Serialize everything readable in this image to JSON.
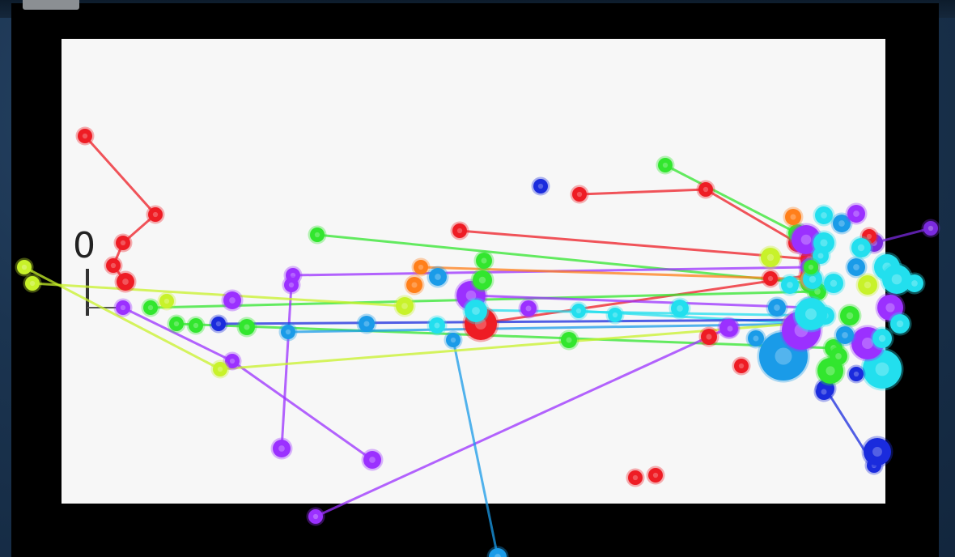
{
  "chart_data": {
    "type": "scatter",
    "title": "",
    "xlabel": "",
    "ylabel": "",
    "annotation": "0",
    "point_style": "connected bubble trails",
    "colors": [
      "#ee1c24",
      "#32e62e",
      "#9b30ff",
      "#22dfee",
      "#1a2bdd",
      "#1a9be8",
      "#ff7f1a",
      "#c8f22a",
      "#7a2adf"
    ],
    "series": [
      {
        "color": "#ee1c24",
        "points": [
          [
            105,
            168
          ],
          [
            192,
            265
          ],
          [
            152,
            300
          ],
          [
            140,
            328
          ],
          [
            155,
            348
          ]
        ]
      },
      {
        "color": "#ee1c24",
        "points": [
          [
            568,
            285
          ],
          [
            1000,
            320
          ]
        ]
      },
      {
        "color": "#ee1c24",
        "points": [
          [
            716,
            240
          ],
          [
            872,
            234
          ],
          [
            985,
            300
          ]
        ]
      },
      {
        "color": "#ee1c24",
        "points": [
          [
            590,
            400
          ],
          [
            1000,
            340
          ]
        ]
      },
      {
        "color": "#32e62e",
        "points": [
          [
            392,
            290
          ],
          [
            1000,
            350
          ]
        ]
      },
      {
        "color": "#32e62e",
        "points": [
          [
            822,
            204
          ],
          [
            985,
            288
          ]
        ]
      },
      {
        "color": "#32e62e",
        "points": [
          [
            218,
            400
          ],
          [
            1030,
            430
          ]
        ]
      },
      {
        "color": "#32e62e",
        "points": [
          [
            186,
            380
          ],
          [
            1010,
            360
          ]
        ]
      },
      {
        "color": "#9b30ff",
        "points": [
          [
            362,
            340
          ],
          [
            1000,
            330
          ]
        ]
      },
      {
        "color": "#9b30ff",
        "points": [
          [
            152,
            380
          ],
          [
            287,
            446
          ],
          [
            460,
            568
          ]
        ]
      },
      {
        "color": "#9b30ff",
        "points": [
          [
            360,
            352
          ],
          [
            348,
            554
          ]
        ]
      },
      {
        "color": "#9b30ff",
        "points": [
          [
            390,
            638
          ],
          [
            900,
            405
          ]
        ]
      },
      {
        "color": "#9b30ff",
        "points": [
          [
            582,
            365
          ],
          [
            1000,
            380
          ]
        ]
      },
      {
        "color": "#22dfee",
        "points": [
          [
            590,
            383
          ],
          [
            1020,
            390
          ]
        ]
      },
      {
        "color": "#22dfee",
        "points": [
          [
            715,
            384
          ],
          [
            1000,
            400
          ]
        ]
      },
      {
        "color": "#1a2bdd",
        "points": [
          [
            270,
            400
          ],
          [
            1000,
            395
          ]
        ]
      },
      {
        "color": "#1a2bdd",
        "points": [
          [
            1080,
            575
          ],
          [
            1020,
            480
          ]
        ]
      },
      {
        "color": "#1a9be8",
        "points": [
          [
            356,
            410
          ],
          [
            1000,
            400
          ]
        ]
      },
      {
        "color": "#1a9be8",
        "points": [
          [
            560,
            420
          ],
          [
            615,
            688
          ]
        ]
      },
      {
        "color": "#ff7f1a",
        "points": [
          [
            520,
            330
          ],
          [
            1000,
            345
          ]
        ]
      },
      {
        "color": "#c8f22a",
        "points": [
          [
            30,
            330
          ],
          [
            272,
            456
          ],
          [
            980,
            400
          ]
        ]
      },
      {
        "color": "#c8f22a",
        "points": [
          [
            40,
            350
          ],
          [
            500,
            378
          ]
        ]
      },
      {
        "color": "#7a2adf",
        "points": [
          [
            1150,
            282
          ],
          [
            1080,
            300
          ]
        ]
      }
    ],
    "extra_points": [
      {
        "color": "#1a2bdd",
        "p": [
          668,
          230
        ],
        "r": 9
      },
      {
        "color": "#ee1c24",
        "p": [
          785,
          590
        ],
        "r": 9
      },
      {
        "color": "#ee1c24",
        "p": [
          810,
          587
        ],
        "r": 9
      },
      {
        "color": "#ee1c24",
        "p": [
          876,
          416
        ],
        "r": 10
      },
      {
        "color": "#ee1c24",
        "p": [
          916,
          452
        ],
        "r": 9
      },
      {
        "color": "#ee1c24",
        "p": [
          1074,
          292
        ],
        "r": 9
      },
      {
        "color": "#ff7f1a",
        "p": [
          980,
          268
        ],
        "r": 10
      },
      {
        "color": "#ff7f1a",
        "p": [
          512,
          352
        ],
        "r": 10
      },
      {
        "color": "#ee1c24",
        "p": [
          594,
          400
        ],
        "r": 20
      },
      {
        "color": "#9b30ff",
        "p": [
          582,
          365
        ],
        "r": 18
      },
      {
        "color": "#22dfee",
        "p": [
          588,
          384
        ],
        "r": 14
      },
      {
        "color": "#1a9be8",
        "p": [
          541,
          342
        ],
        "r": 11
      },
      {
        "color": "#32e62e",
        "p": [
          598,
          322
        ],
        "r": 10
      },
      {
        "color": "#32e62e",
        "p": [
          596,
          346
        ],
        "r": 12
      },
      {
        "color": "#32e62e",
        "p": [
          703,
          420
        ],
        "r": 10
      },
      {
        "color": "#9b30ff",
        "p": [
          653,
          381
        ],
        "r": 10
      },
      {
        "color": "#22dfee",
        "p": [
          760,
          389
        ],
        "r": 9
      },
      {
        "color": "#22dfee",
        "p": [
          840,
          381
        ],
        "r": 11
      },
      {
        "color": "#9b30ff",
        "p": [
          287,
          371
        ],
        "r": 11
      },
      {
        "color": "#32e62e",
        "p": [
          305,
          404
        ],
        "r": 10
      },
      {
        "color": "#c8f22a",
        "p": [
          206,
          372
        ],
        "r": 9
      },
      {
        "color": "#32e62e",
        "p": [
          242,
          402
        ],
        "r": 9
      },
      {
        "color": "#1a9be8",
        "p": [
          453,
          400
        ],
        "r": 10
      },
      {
        "color": "#22dfee",
        "p": [
          540,
          402
        ],
        "r": 10
      },
      {
        "color": "#1a2bdd",
        "p": [
          1084,
          558
        ],
        "r": 17
      },
      {
        "color": "#1a2bdd",
        "p": [
          1018,
          484
        ],
        "r": 10
      },
      {
        "color": "#1a9be8",
        "p": [
          968,
          440
        ],
        "r": 30
      },
      {
        "color": "#9b30ff",
        "p": [
          990,
          408
        ],
        "r": 24
      },
      {
        "color": "#22dfee",
        "p": [
          1002,
          388
        ],
        "r": 20
      },
      {
        "color": "#9b30ff",
        "p": [
          996,
          296
        ],
        "r": 18
      },
      {
        "color": "#22dfee",
        "p": [
          1018,
          300
        ],
        "r": 13
      },
      {
        "color": "#1a9be8",
        "p": [
          1040,
          276
        ],
        "r": 11
      },
      {
        "color": "#9b30ff",
        "p": [
          1058,
          264
        ],
        "r": 11
      },
      {
        "color": "#22dfee",
        "p": [
          1018,
          266
        ],
        "r": 11
      },
      {
        "color": "#22dfee",
        "p": [
          1096,
          330
        ],
        "r": 16
      },
      {
        "color": "#22dfee",
        "p": [
          1108,
          345
        ],
        "r": 18
      },
      {
        "color": "#22dfee",
        "p": [
          1090,
          456
        ],
        "r": 24
      },
      {
        "color": "#9b30ff",
        "p": [
          1072,
          424
        ],
        "r": 20
      },
      {
        "color": "#9b30ff",
        "p": [
          1100,
          380
        ],
        "r": 16
      },
      {
        "color": "#22dfee",
        "p": [
          1130,
          350
        ],
        "r": 11
      },
      {
        "color": "#22dfee",
        "p": [
          1112,
          400
        ],
        "r": 12
      },
      {
        "color": "#32e62e",
        "p": [
          1026,
          458
        ],
        "r": 16
      },
      {
        "color": "#32e62e",
        "p": [
          1036,
          440
        ],
        "r": 11
      },
      {
        "color": "#32e62e",
        "p": [
          1050,
          390
        ],
        "r": 12
      },
      {
        "color": "#1a9be8",
        "p": [
          1044,
          414
        ],
        "r": 11
      },
      {
        "color": "#1a9be8",
        "p": [
          1058,
          330
        ],
        "r": 11
      },
      {
        "color": "#22dfee",
        "p": [
          1030,
          350
        ],
        "r": 12
      },
      {
        "color": "#22dfee",
        "p": [
          976,
          352
        ],
        "r": 11
      },
      {
        "color": "#22dfee",
        "p": [
          1004,
          345
        ],
        "r": 12
      },
      {
        "color": "#c8f22a",
        "p": [
          952,
          318
        ],
        "r": 12
      },
      {
        "color": "#c8f22a",
        "p": [
          1072,
          352
        ],
        "r": 12
      },
      {
        "color": "#ee1c24",
        "p": [
          952,
          344
        ],
        "r": 9
      },
      {
        "color": "#1a9be8",
        "p": [
          960,
          380
        ],
        "r": 11
      },
      {
        "color": "#22dfee",
        "p": [
          1014,
          316
        ],
        "r": 10
      },
      {
        "color": "#1a2bdd",
        "p": [
          1058,
          462
        ],
        "r": 9
      },
      {
        "color": "#22dfee",
        "p": [
          1090,
          418
        ],
        "r": 12
      },
      {
        "color": "#9b30ff",
        "p": [
          902,
          406
        ],
        "r": 10
      },
      {
        "color": "#1a9be8",
        "p": [
          934,
          418
        ],
        "r": 10
      },
      {
        "color": "#22dfee",
        "p": [
          1064,
          306
        ],
        "r": 12
      },
      {
        "color": "#32e62e",
        "p": [
          1002,
          330
        ],
        "r": 9
      }
    ]
  }
}
